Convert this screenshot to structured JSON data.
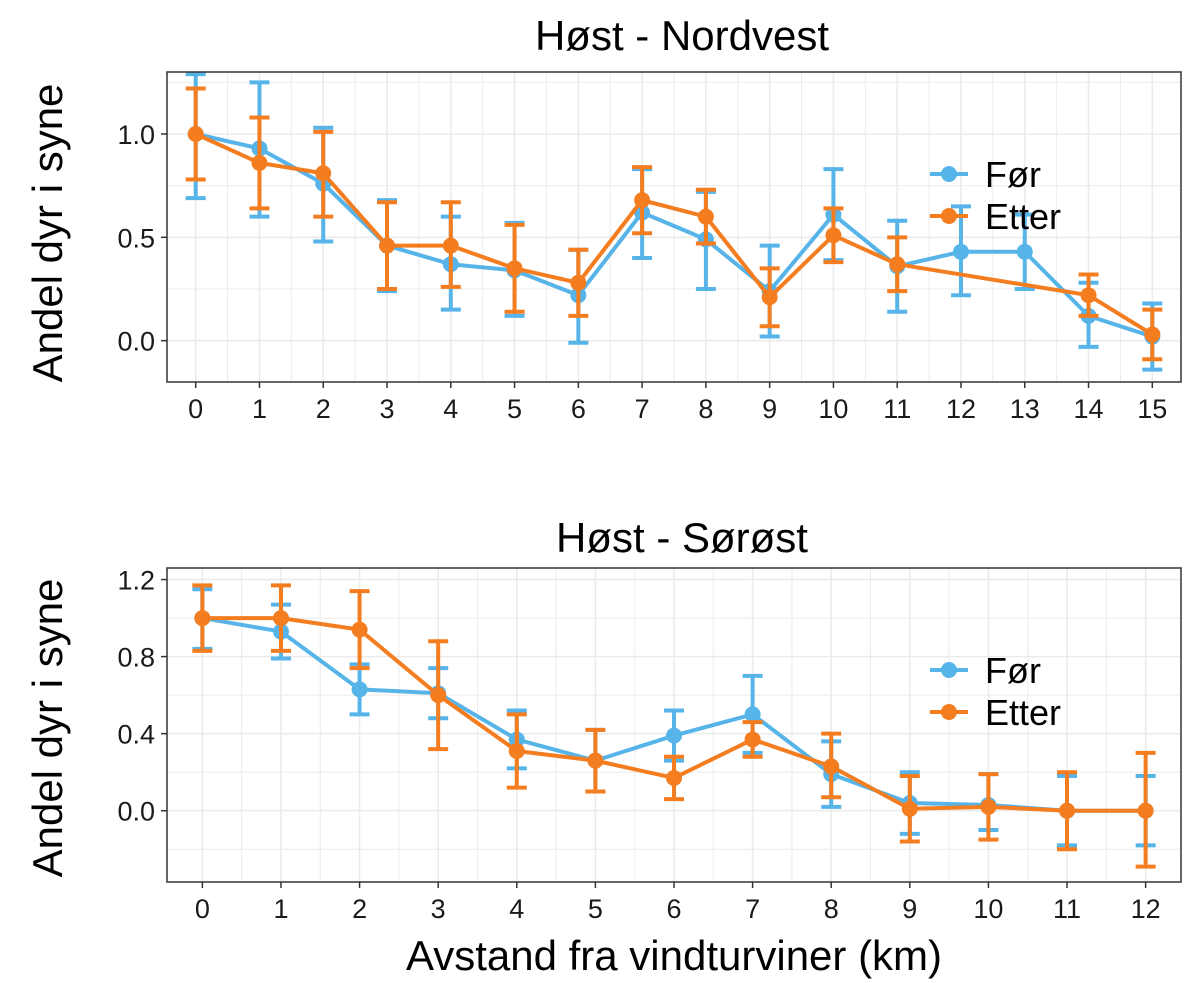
{
  "colors": {
    "for": "#56B4E9",
    "etter": "#F47D20",
    "grid": "#ebebeb",
    "panel_border": "#333333"
  },
  "xlabel": "Avstand fra vindturviner (km)",
  "chart_data": [
    {
      "type": "line",
      "title": "Høst - Nordvest",
      "ylabel": "Andel dyr i syne",
      "x": [
        0,
        1,
        2,
        3,
        4,
        5,
        6,
        7,
        8,
        9,
        10,
        11,
        12,
        13,
        14,
        15
      ],
      "xlim": [
        -0.45,
        15.45
      ],
      "ylim": [
        -0.2,
        1.3
      ],
      "yticks": [
        0.0,
        0.5,
        1.0
      ],
      "ytick_labels": [
        "0.0",
        "0.5",
        "1.0"
      ],
      "grid": true,
      "legend_position": "right",
      "series": [
        {
          "name": "Før",
          "color": "#56B4E9",
          "x": [
            0,
            1,
            2,
            3,
            4,
            5,
            6,
            7,
            8,
            9,
            10,
            11,
            12,
            13,
            14,
            15
          ],
          "values": [
            1.0,
            0.93,
            0.76,
            0.46,
            0.37,
            0.34,
            0.22,
            0.62,
            0.49,
            0.24,
            0.61,
            0.36,
            0.43,
            0.43,
            0.12,
            0.02
          ],
          "lower": [
            0.69,
            0.6,
            0.48,
            0.24,
            0.15,
            0.12,
            -0.01,
            0.4,
            0.25,
            0.02,
            0.39,
            0.14,
            0.22,
            0.25,
            -0.03,
            -0.14
          ],
          "upper": [
            1.29,
            1.25,
            1.03,
            0.68,
            0.6,
            0.57,
            0.44,
            0.83,
            0.72,
            0.46,
            0.83,
            0.58,
            0.65,
            0.61,
            0.28,
            0.18
          ]
        },
        {
          "name": "Etter",
          "color": "#F47D20",
          "x": [
            0,
            1,
            2,
            3,
            4,
            5,
            6,
            7,
            8,
            9,
            10,
            11,
            14,
            15
          ],
          "values": [
            1.0,
            0.86,
            0.81,
            0.46,
            0.46,
            0.35,
            0.28,
            0.68,
            0.6,
            0.21,
            0.51,
            0.37,
            0.22,
            0.03
          ],
          "lower": [
            0.78,
            0.64,
            0.6,
            0.25,
            0.26,
            0.14,
            0.12,
            0.52,
            0.47,
            0.07,
            0.38,
            0.24,
            0.12,
            -0.09
          ],
          "upper": [
            1.22,
            1.08,
            1.01,
            0.67,
            0.67,
            0.56,
            0.44,
            0.84,
            0.73,
            0.35,
            0.64,
            0.5,
            0.32,
            0.15
          ]
        }
      ]
    },
    {
      "type": "line",
      "title": "Høst - Sørøst",
      "ylabel": "Andel dyr i syne",
      "x": [
        0,
        1,
        2,
        3,
        4,
        5,
        6,
        7,
        8,
        9,
        10,
        11,
        12
      ],
      "xlim": [
        -0.45,
        12.45
      ],
      "ylim": [
        -0.37,
        1.26
      ],
      "yticks": [
        0.0,
        0.4,
        0.8,
        1.2
      ],
      "ytick_labels": [
        "0.0",
        "0.4",
        "0.8",
        "1.2"
      ],
      "grid": true,
      "legend_position": "right",
      "series": [
        {
          "name": "Før",
          "color": "#56B4E9",
          "x": [
            0,
            1,
            2,
            3,
            4,
            5,
            6,
            7,
            8,
            9,
            10,
            11,
            12
          ],
          "values": [
            1.0,
            0.93,
            0.63,
            0.61,
            0.37,
            0.26,
            0.39,
            0.5,
            0.19,
            0.04,
            0.03,
            0.0,
            0.0
          ],
          "lower": [
            0.84,
            0.79,
            0.5,
            0.48,
            0.22,
            0.1,
            0.26,
            0.3,
            0.02,
            -0.12,
            -0.1,
            -0.18,
            -0.18
          ],
          "upper": [
            1.15,
            1.07,
            0.76,
            0.74,
            0.52,
            0.42,
            0.52,
            0.7,
            0.36,
            0.2,
            0.19,
            0.18,
            0.18
          ]
        },
        {
          "name": "Etter",
          "color": "#F47D20",
          "x": [
            0,
            1,
            2,
            3,
            4,
            5,
            6,
            7,
            8,
            9,
            10,
            11,
            12
          ],
          "values": [
            1.0,
            1.0,
            0.94,
            0.6,
            0.31,
            0.26,
            0.17,
            0.37,
            0.23,
            0.01,
            0.02,
            0.0,
            0.0
          ],
          "lower": [
            0.83,
            0.83,
            0.74,
            0.32,
            0.12,
            0.1,
            0.06,
            0.28,
            0.07,
            -0.16,
            -0.15,
            -0.2,
            -0.29
          ],
          "upper": [
            1.17,
            1.17,
            1.14,
            0.88,
            0.5,
            0.42,
            0.28,
            0.46,
            0.4,
            0.18,
            0.19,
            0.2,
            0.3
          ]
        }
      ]
    }
  ]
}
